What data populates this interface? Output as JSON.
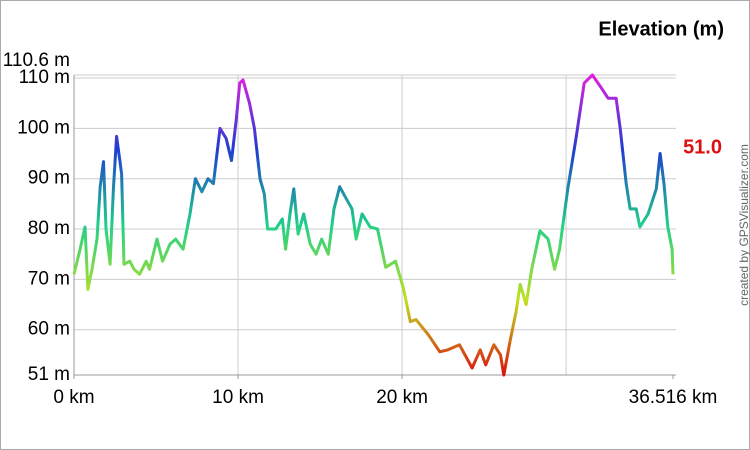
{
  "chart_data": {
    "type": "line",
    "legend_title": "Elevation (m)",
    "color_scale": [
      {
        "value": 110.6,
        "color": "#e020e0"
      },
      {
        "value": 95.7,
        "color": "#1e3ed0"
      },
      {
        "value": 80.8,
        "color": "#20d088"
      },
      {
        "value": 65.9,
        "color": "#c0e020"
      },
      {
        "value": 51,
        "label": "51.0",
        "color": "#dd1010"
      }
    ],
    "credit": "created by GPSVisualizer.com",
    "xlim": [
      0,
      36.516
    ],
    "ylim": [
      51,
      110.6
    ],
    "xticks": [
      {
        "value": 0,
        "label": "0 km"
      },
      {
        "value": 10,
        "label": "10 km"
      },
      {
        "value": 20,
        "label": "20 km"
      },
      {
        "value": 36.516,
        "label": "36.516 km"
      }
    ],
    "xgrid": [
      10,
      20,
      30
    ],
    "yticks": [
      {
        "value": 51,
        "label": "51 m"
      },
      {
        "value": 60,
        "label": "60 m"
      },
      {
        "value": 70,
        "label": "70 m"
      },
      {
        "value": 80,
        "label": "80 m"
      },
      {
        "value": 90,
        "label": "90 m"
      },
      {
        "value": 100,
        "label": "100 m"
      },
      {
        "value": 110,
        "label": "110 m"
      },
      {
        "value": 110.6,
        "label": "110.6 m"
      }
    ],
    "grid": true,
    "x": [
      0,
      0.37,
      0.67,
      0.85,
      1.1,
      1.4,
      1.6,
      1.8,
      1.95,
      2.2,
      2.4,
      2.6,
      2.9,
      3.05,
      3.4,
      3.66,
      4.0,
      4.4,
      4.6,
      5.06,
      5.4,
      5.85,
      6.2,
      6.65,
      7.07,
      7.4,
      7.8,
      8.17,
      8.5,
      8.9,
      9.27,
      9.6,
      9.9,
      10.1,
      10.3,
      10.7,
      11.0,
      11.34,
      11.6,
      11.8,
      12.3,
      12.7,
      12.9,
      13.17,
      13.4,
      13.66,
      14.0,
      14.4,
      14.76,
      15.1,
      15.5,
      15.85,
      16.2,
      16.6,
      16.95,
      17.2,
      17.56,
      18.05,
      18.5,
      19.0,
      19.6,
      20.1,
      20.5,
      20.85,
      21.6,
      22.3,
      22.8,
      23.5,
      24.0,
      24.27,
      24.76,
      25.1,
      25.6,
      26.0,
      26.2,
      26.6,
      26.95,
      27.2,
      27.56,
      27.9,
      28.4,
      28.9,
      29.3,
      29.6,
      30.1,
      30.6,
      31.1,
      31.6,
      32.07,
      32.56,
      33.05,
      33.3,
      33.66,
      33.9,
      34.27,
      34.5,
      35.0,
      35.5,
      35.73,
      35.97,
      36.2,
      36.46,
      36.516
    ],
    "values": [
      71,
      76,
      80.4,
      68,
      72,
      78,
      88.4,
      93.4,
      80,
      73,
      88,
      98.4,
      91,
      73,
      73.6,
      72,
      71,
      73.6,
      72,
      78,
      73.6,
      77,
      78,
      76,
      83,
      90,
      87.4,
      90,
      89,
      100,
      98,
      93.6,
      102,
      109,
      109.6,
      105,
      100,
      90,
      87,
      80,
      80,
      82,
      76,
      83,
      88,
      79,
      83,
      77,
      75,
      78,
      75,
      84,
      88.4,
      86,
      84,
      78,
      83,
      80.4,
      80,
      72.4,
      73.6,
      68,
      61.6,
      62,
      59,
      55.6,
      56,
      57,
      54,
      52.4,
      56,
      53,
      57,
      55,
      51,
      58,
      63.6,
      69,
      65,
      72,
      79.6,
      78,
      72,
      76,
      88,
      98,
      109,
      110.6,
      108.4,
      106,
      106,
      100,
      89,
      84,
      84,
      80.4,
      83,
      88,
      95,
      89,
      80.4,
      76,
      71
    ]
  }
}
